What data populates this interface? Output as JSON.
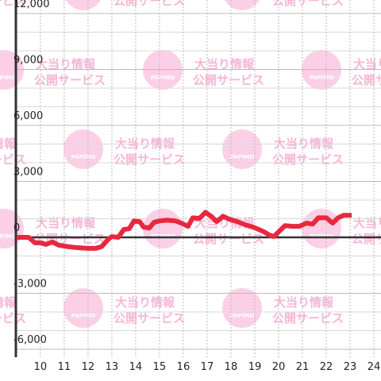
{
  "chart_data": {
    "type": "line",
    "watermark": {
      "line1": "大当り情報",
      "line2": "公開サービス",
      "logo": "PAPIMO"
    },
    "x": [
      9,
      9.5,
      9.77,
      10.0,
      10.23,
      10.5,
      10.77,
      11.17,
      11.5,
      12.0,
      12.33,
      12.57,
      12.83,
      13.0,
      13.27,
      13.5,
      13.73,
      13.93,
      14.17,
      14.33,
      14.57,
      14.77,
      15.0,
      15.33,
      15.67,
      15.93,
      16.2,
      16.4,
      16.67,
      16.93,
      17.17,
      17.4,
      17.67,
      17.93,
      18.27,
      18.6,
      18.93,
      19.17,
      19.4,
      19.6,
      19.8,
      20.0,
      20.27,
      20.57,
      20.87,
      21.17,
      21.43,
      21.67,
      22.0,
      22.27,
      22.5,
      22.73,
      23.07
    ],
    "series": [
      {
        "color": "#e8283f",
        "values": [
          0,
          0,
          -290,
          -290,
          -380,
          -250,
          -420,
          -500,
          -550,
          -590,
          -590,
          -500,
          -130,
          40,
          0,
          420,
          460,
          880,
          840,
          550,
          500,
          800,
          880,
          920,
          880,
          760,
          590,
          1050,
          1010,
          1340,
          1130,
          840,
          1130,
          970,
          840,
          670,
          550,
          420,
          290,
          130,
          40,
          290,
          630,
          590,
          590,
          760,
          710,
          1050,
          1050,
          760,
          1050,
          1180,
          1180
        ]
      }
    ],
    "xlim": [
      8.97,
      24.3
    ],
    "ylim": [
      -6000,
      12000
    ],
    "xticks": [
      10,
      11,
      12,
      13,
      14,
      15,
      16,
      17,
      18,
      19,
      20,
      21,
      22,
      23,
      24
    ],
    "yticks": [
      {
        "value": -6000,
        "label": "-6,000"
      },
      {
        "value": -3000,
        "label": "-3,000"
      },
      0,
      {
        "value": 3000,
        "label": "3,000"
      },
      {
        "value": 6000,
        "label": "6,000"
      },
      {
        "value": 9000,
        "label": "9,000"
      },
      {
        "value": 12000,
        "label": "12,000"
      }
    ],
    "y_minor_ticks": [
      -5000,
      -4000,
      -2000,
      -1000,
      1000,
      2000,
      4000,
      5000,
      7000,
      8000,
      10000,
      11000
    ],
    "grid": true
  }
}
